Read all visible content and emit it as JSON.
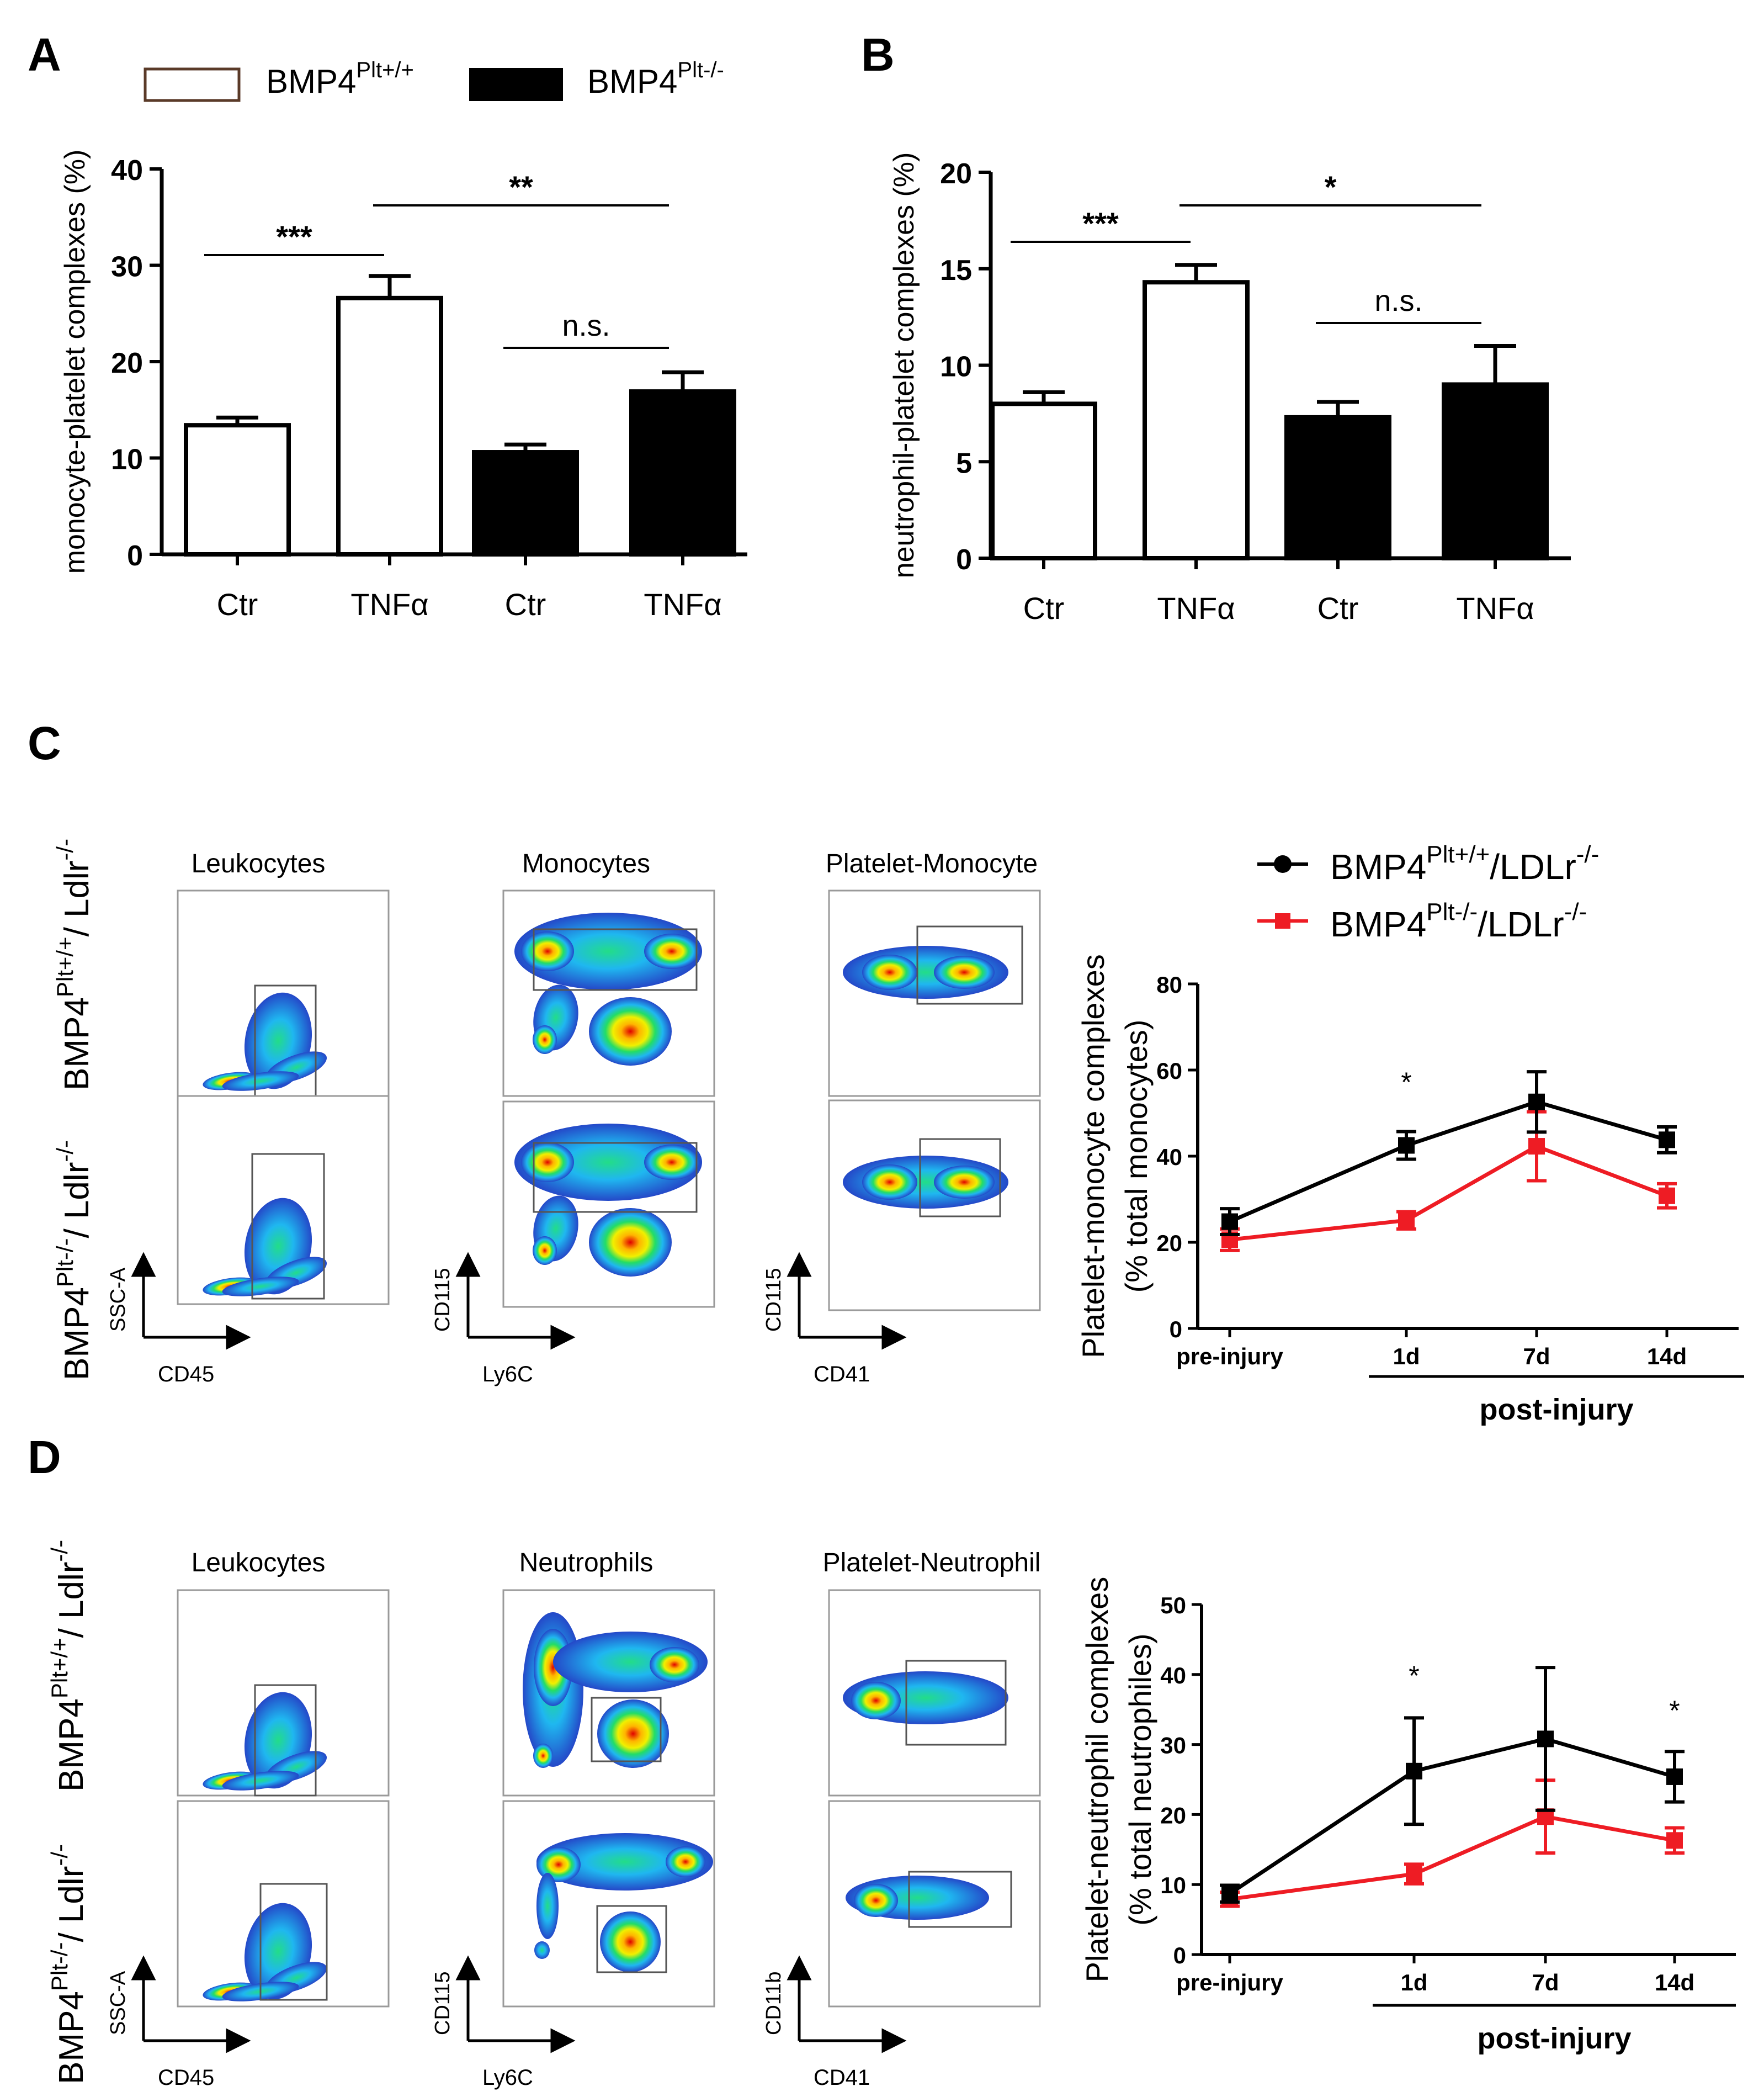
{
  "panel_letters": [
    "A",
    "B",
    "C",
    "D"
  ],
  "legend_ab": {
    "wt": {
      "base": "BMP4",
      "sup": "Plt+/+"
    },
    "ko": {
      "base": "BMP4",
      "sup": "Plt-/-"
    }
  },
  "legend_line": {
    "wt": {
      "base": "BMP4",
      "sup": "Plt+/+",
      "mid": "/LDLr",
      "sup2": "-/-"
    },
    "ko": {
      "base": "BMP4",
      "sup": "Plt-/-",
      "mid": "/LDLr",
      "sup2": "-/-"
    }
  },
  "row_labels": {
    "wt": {
      "base": "BMP4",
      "sup": "Plt+/+",
      "mid": "/ Ldlr",
      "sup2": "-/-"
    },
    "ko": {
      "base": "BMP4",
      "sup": "Plt-/-",
      "mid": "/ Ldlr",
      "sup2": "-/-"
    }
  },
  "flow": {
    "C": {
      "titles": [
        "Leukocytes",
        "Monocytes",
        "Platelet-Monocyte"
      ],
      "x_axes": [
        "CD45",
        "Ly6C",
        "CD41"
      ],
      "y_axes": [
        "SSC-A",
        "CD115",
        "CD115"
      ]
    },
    "D": {
      "titles": [
        "Leukocytes",
        "Neutrophils",
        "Platelet-Neutrophil"
      ],
      "x_axes": [
        "CD45",
        "Ly6C",
        "CD41"
      ],
      "y_axes": [
        "SSC-A",
        "CD115",
        "CD11b"
      ]
    }
  },
  "colors": {
    "wt_line": "#000000",
    "ko_line": "#ee1c24",
    "bar_wt_fill": "#ffffff",
    "bar_ko_fill": "#000000",
    "legend_box_border": "#5a3a28"
  },
  "chart_data": [
    {
      "panel": "A",
      "type": "bar",
      "ylabel": "monocyte-platelet complexes (%)",
      "categories": [
        "Ctr",
        "TNFα",
        "Ctr",
        "TNFα"
      ],
      "groups": [
        "wt",
        "wt",
        "ko",
        "ko"
      ],
      "values": [
        13.4,
        26.6,
        10.6,
        16.9
      ],
      "errors": [
        0.8,
        2.3,
        0.8,
        2.0
      ],
      "ylim": [
        0,
        40
      ],
      "yticks": [
        0,
        10,
        20,
        30,
        40
      ],
      "significance": [
        {
          "from": 0,
          "to": 1,
          "label": "***"
        },
        {
          "from": 1,
          "to": 3,
          "label": "**"
        },
        {
          "from": 2,
          "to": 3,
          "label": "n.s."
        }
      ]
    },
    {
      "panel": "B",
      "type": "bar",
      "ylabel": "neutrophil-platelet complexes (%)",
      "categories": [
        "Ctr",
        "TNFα",
        "Ctr",
        "TNFα"
      ],
      "groups": [
        "wt",
        "wt",
        "ko",
        "ko"
      ],
      "values": [
        8.0,
        14.3,
        7.3,
        9.0
      ],
      "errors": [
        0.6,
        0.9,
        0.8,
        2.0
      ],
      "ylim": [
        0,
        20
      ],
      "yticks": [
        0,
        5,
        10,
        15,
        20
      ],
      "significance": [
        {
          "from": 0,
          "to": 1,
          "label": "***"
        },
        {
          "from": 1,
          "to": 3,
          "label": "*"
        },
        {
          "from": 2,
          "to": 3,
          "label": "n.s."
        }
      ]
    },
    {
      "panel": "C",
      "type": "line",
      "ylabel_lines": [
        "Platelet-monocyte complexes",
        "(% total monocytes)"
      ],
      "x": [
        "pre-injury",
        "1d",
        "7d",
        "14d"
      ],
      "group_label": "post-injury",
      "ylim": [
        0,
        80
      ],
      "yticks": [
        0,
        20,
        40,
        60,
        80
      ],
      "series": [
        {
          "key": "wt",
          "values": [
            24.8,
            42.5,
            52.6,
            43.8
          ],
          "errors": [
            3.0,
            3.2,
            7.0,
            3.0
          ]
        },
        {
          "key": "ko",
          "values": [
            20.6,
            25.1,
            42.3,
            30.8
          ],
          "errors": [
            2.5,
            2.0,
            8.0,
            2.8
          ]
        }
      ],
      "annotations": [
        {
          "x_index": 1,
          "y": 55,
          "label": "*"
        }
      ]
    },
    {
      "panel": "D",
      "type": "line",
      "ylabel_lines": [
        "Platelet-neutrophil complexes",
        "(% total neutrophiles)"
      ],
      "x": [
        "pre-injury",
        "1d",
        "7d",
        "14d"
      ],
      "group_label": "post-injury",
      "ylim": [
        0,
        50
      ],
      "yticks": [
        0,
        10,
        20,
        30,
        40,
        50
      ],
      "series": [
        {
          "key": "wt",
          "values": [
            8.7,
            26.2,
            30.8,
            25.4
          ],
          "errors": [
            1.2,
            7.6,
            10.2,
            3.6
          ]
        },
        {
          "key": "ko",
          "values": [
            7.9,
            11.5,
            19.7,
            16.3
          ],
          "errors": [
            1.0,
            1.4,
            5.2,
            1.8
          ]
        }
      ],
      "annotations": [
        {
          "x_index": 1,
          "y": 38.5,
          "label": "*"
        },
        {
          "x_index": 3,
          "y": 33.5,
          "label": "*"
        }
      ]
    }
  ]
}
